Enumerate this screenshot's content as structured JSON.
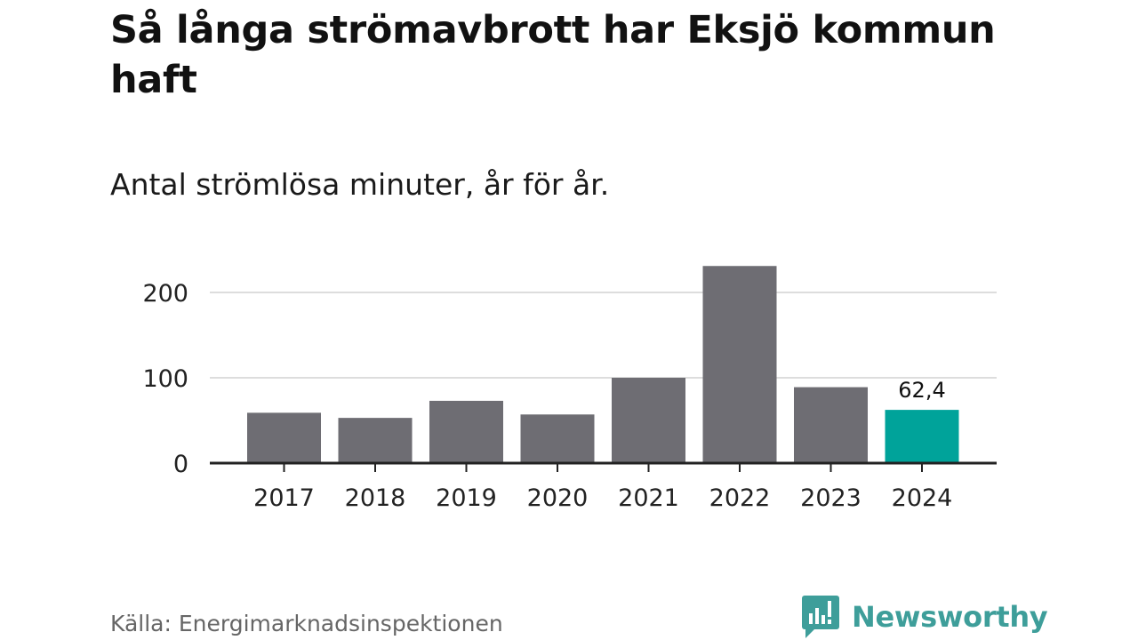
{
  "title": "Så långa strömavbrott har Eksjö kommun haft",
  "subtitle": "Antal strömlösa minuter, år för år.",
  "source": "Källa: Energimarknadsinspektionen",
  "brand": {
    "name": "Newsworthy",
    "icon": "newsworthy-logo-icon",
    "color": "#3e9e9a"
  },
  "colors": {
    "bar": "#6e6d73",
    "highlight": "#00a39a",
    "grid": "#dddddd",
    "axis": "#222222",
    "text": "#222222"
  },
  "chart_data": {
    "type": "bar",
    "categories": [
      "2017",
      "2018",
      "2019",
      "2020",
      "2021",
      "2022",
      "2023",
      "2024"
    ],
    "values": [
      59,
      53,
      73,
      57,
      100,
      231,
      89,
      62.4
    ],
    "highlight_index": 7,
    "data_labels": [
      "",
      "",
      "",
      "",
      "",
      "",
      "",
      "62,4"
    ],
    "yticks": [
      0,
      100,
      200
    ],
    "ytick_labels": [
      "0",
      "100",
      "200"
    ],
    "ylim": [
      0,
      235
    ],
    "grid": true,
    "legend": false
  }
}
